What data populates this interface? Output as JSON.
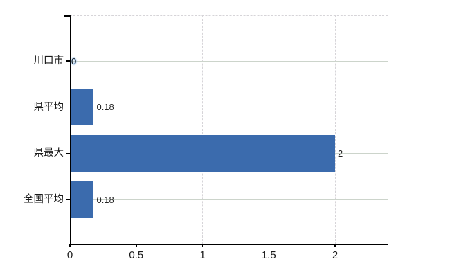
{
  "chart_data": {
    "type": "bar",
    "orientation": "horizontal",
    "title": "",
    "categories": [
      "川口市",
      "県平均",
      "県最大",
      "全国平均"
    ],
    "values": [
      0,
      0.18,
      2,
      0.18
    ],
    "value_labels": [
      "0",
      "0.18",
      "2",
      "0.18"
    ],
    "series": [
      {
        "name": "",
        "values": [
          0,
          0.18,
          2,
          0.18
        ]
      }
    ],
    "xlabel": "",
    "ylabel": "",
    "x_axis": {
      "min": 0,
      "max": 2.4,
      "ticks": [
        0,
        0.5,
        1,
        1.5,
        2
      ],
      "tick_labels": [
        "0",
        "0.5",
        "1",
        "1.5",
        "2"
      ]
    },
    "grid": true,
    "legend_position": "none",
    "colors": {
      "bar": "#3b6bad",
      "h_gridline": "#ccd4cb",
      "v_gridline": "#d6d4d8",
      "axis": "#000000",
      "category_label_text": "#1a1a1a",
      "value_label_text": "#262626",
      "background": "#ffffff",
      "zero_label_halo": "#8cb8e4"
    }
  }
}
